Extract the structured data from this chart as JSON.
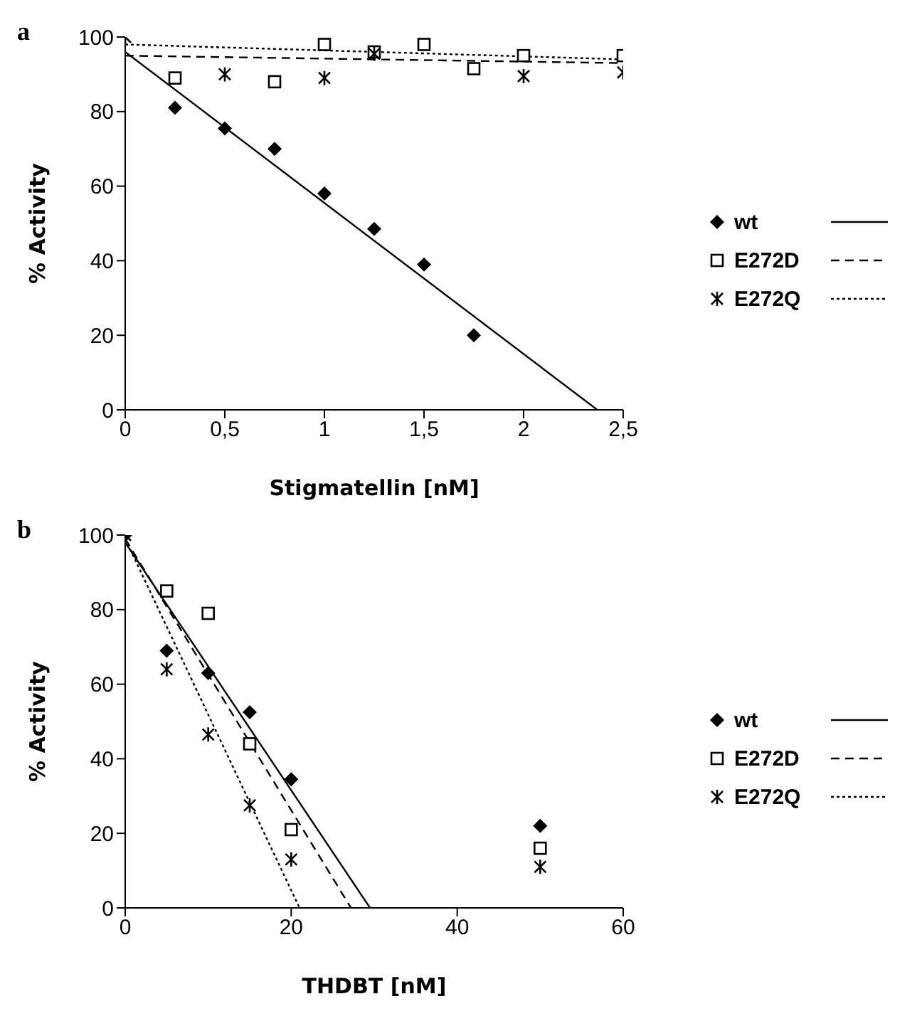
{
  "chart_data": [
    {
      "type": "scatter",
      "title": "a",
      "xlabel": "Stigmatellin [nM]",
      "ylabel": "% Activity",
      "xlim": [
        0,
        2.5
      ],
      "xticks": [
        0,
        {
          "value": 0.5,
          "label": "0,5"
        },
        1,
        {
          "value": 1.5,
          "label": "1,5"
        },
        2,
        {
          "value": 2.5,
          "label": "2,5"
        }
      ],
      "ylim": [
        0,
        100
      ],
      "yticks": [
        0,
        20,
        40,
        60,
        80,
        100
      ],
      "grid": false,
      "legend": "right",
      "series": [
        {
          "name": "wt",
          "marker": "diamond",
          "color": "#000000",
          "x": [
            0.25,
            0.5,
            0.75,
            1,
            1.25,
            1.5,
            1.75
          ],
          "values": [
            81,
            75.5,
            70,
            58,
            48.5,
            39,
            20
          ]
        },
        {
          "name": "E272D",
          "marker": "square",
          "color": "#000000",
          "x": [
            0.25,
            0.75,
            1,
            1.25,
            1.5,
            1.75,
            2,
            2.5
          ],
          "values": [
            89,
            88,
            98,
            96,
            98,
            91.5,
            95,
            95
          ]
        },
        {
          "name": "E272Q",
          "marker": "cross",
          "color": "#000000",
          "x": [
            0,
            0.5,
            1,
            1.25,
            2,
            2.5
          ],
          "values": [
            100,
            90,
            89,
            95.5,
            89.5,
            90.5
          ]
        },
        {
          "type": "line",
          "line_style": "solid",
          "color": "#000000",
          "x": [
            0,
            2.37
          ],
          "values": [
            96,
            0
          ]
        },
        {
          "type": "line",
          "line_style": "dashed",
          "color": "#000000",
          "x": [
            0,
            2.5
          ],
          "values": [
            95,
            93
          ]
        },
        {
          "type": "line",
          "line_style": "dotted",
          "color": "#000000",
          "x": [
            0,
            2.5
          ],
          "values": [
            98,
            94
          ]
        }
      ]
    },
    {
      "type": "scatter",
      "title": "b",
      "xlabel": "THDBT [nM]",
      "ylabel": "% Activity",
      "xlim": [
        0,
        60
      ],
      "xticks": [
        0,
        20,
        40,
        60
      ],
      "ylim": [
        0,
        100
      ],
      "yticks": [
        0,
        20,
        40,
        60,
        80,
        100
      ],
      "grid": false,
      "legend": "right",
      "series": [
        {
          "name": "wt",
          "marker": "diamond",
          "color": "#000000",
          "x": [
            0,
            5,
            10,
            15,
            20,
            50
          ],
          "values": [
            100,
            69,
            63,
            52.5,
            34.5,
            22
          ]
        },
        {
          "name": "E272D",
          "marker": "square",
          "color": "#000000",
          "x": [
            5,
            10,
            15,
            20,
            50
          ],
          "values": [
            85,
            79,
            44,
            21,
            16
          ]
        },
        {
          "name": "E272Q",
          "marker": "cross",
          "color": "#000000",
          "x": [
            0,
            5,
            10,
            15,
            20,
            50
          ],
          "values": [
            100,
            64,
            46.5,
            27.5,
            13,
            11
          ]
        },
        {
          "type": "line",
          "line_style": "solid",
          "color": "#000000",
          "x": [
            0,
            29.5
          ],
          "values": [
            98,
            0
          ]
        },
        {
          "type": "line",
          "line_style": "dashed",
          "color": "#000000",
          "x": [
            0,
            27.2
          ],
          "values": [
            99,
            0
          ]
        },
        {
          "type": "line",
          "line_style": "dotted",
          "color": "#000000",
          "x": [
            0,
            21
          ],
          "values": [
            99,
            0
          ]
        }
      ]
    }
  ]
}
